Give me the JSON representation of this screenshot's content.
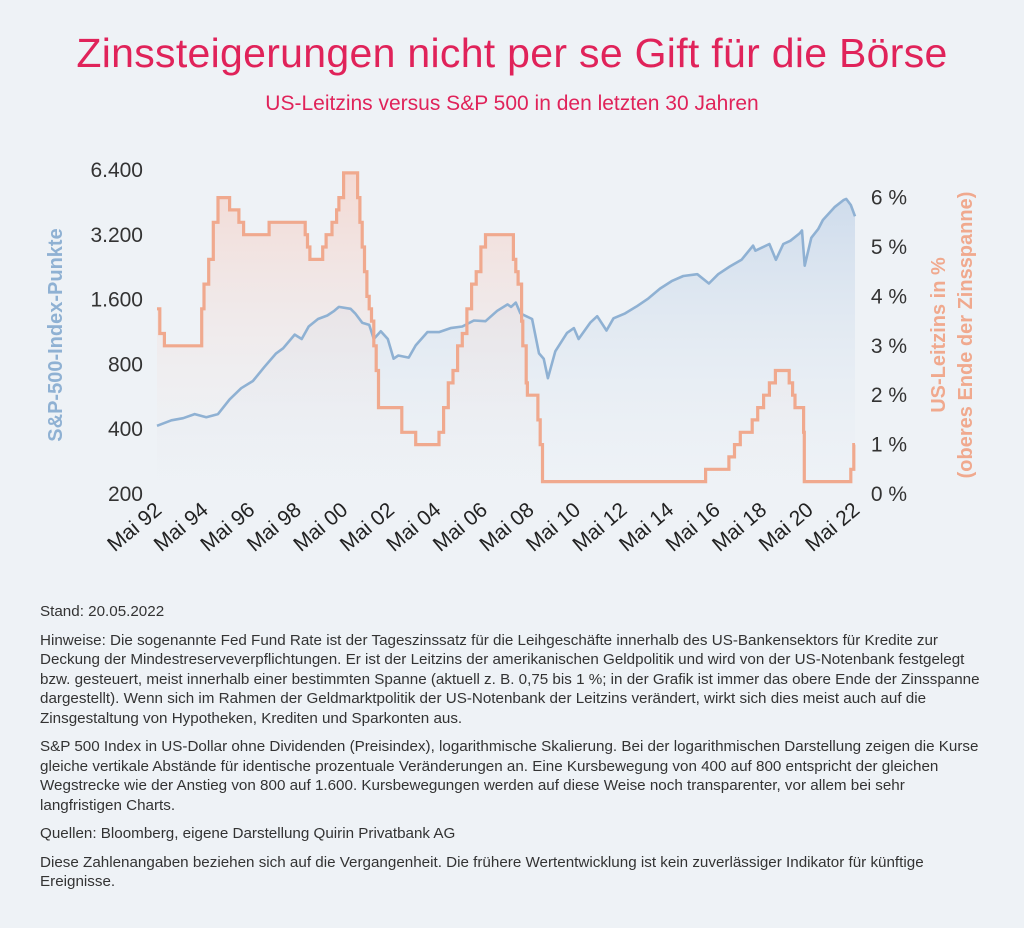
{
  "title": "Zinssteigerungen nicht per se Gift für die Börse",
  "subtitle": "US-Leitzins versus S&P 500 in den letzten 30 Jahren",
  "colors": {
    "title": "#e0235a",
    "sp500_line": "#8fb1d3",
    "rate_line": "#f0a98e",
    "background": "#eef2f6"
  },
  "notes": {
    "stand": "Stand: 20.05.2022",
    "hinweise": "Hinweise: Die sogenannte Fed Fund Rate ist der Tageszinssatz für die Leihgeschäfte innerhalb des US-Bankensektors für Kredite zur Deckung der Mindestreserveverpflichtungen. Er ist der Leitzins der amerikanischen Geldpolitik und wird von der US-Notenbank festgelegt bzw. gesteuert, meist innerhalb einer bestimmten Spanne (aktuell z. B. 0,75 bis 1 %; in der Grafik ist immer das obere Ende der Zinsspanne dargestellt). Wenn sich im Rahmen der Geldmarktpolitik der US-Notenbank der Leitzins verändert, wirkt sich dies meist auch auf die Zinsgestaltung von Hypotheken, Krediten und Sparkonten aus.",
    "index": "S&P 500 Index in US-Dollar ohne Dividenden (Preisindex), logarithmische Skalierung. Bei der logarithmischen Darstellung zeigen die Kurse gleiche vertikale Abstände für identische prozentuale Veränderungen an. Eine Kursbewegung von 400 auf 800 entspricht der gleichen Wegstrecke wie der Anstieg von 800 auf 1.600. Kursbewegungen werden auf diese Weise noch transparenter, vor allem bei sehr langfristigen Charts.",
    "quellen": "Quellen: Bloomberg, eigene Darstellung Quirin Privatbank AG",
    "disclaimer": "Diese Zahlenangaben beziehen sich auf die Vergangenheit. Die frühere Wertentwicklung ist kein zuverlässiger Indikator für künftige Ereignisse."
  },
  "chart_data": {
    "type": "line",
    "title": "Zinssteigerungen nicht per se Gift für die Börse",
    "subtitle": "US-Leitzins versus S&P 500 in den letzten 30 Jahren",
    "xlabel": "",
    "ylabel_left": "S&P-500-Index-Punkte",
    "ylabel_right": "US-Leitzins in % (oberes Ende der Zinsspanne)",
    "ylabel_right_lines": [
      "US-Leitzins in %",
      "(oberes Ende der Zinsspanne)"
    ],
    "x_tick_labels": [
      "Mai 92",
      "Mai 94",
      "Mai 96",
      "Mai 98",
      "Mai 00",
      "Mai 02",
      "Mai 04",
      "Mai 06",
      "Mai 08",
      "Mai 10",
      "Mai 12",
      "Mai 14",
      "Mai 16",
      "Mai 18",
      "Mai 20",
      "Mai 22"
    ],
    "x_tick_years": [
      1992.38,
      1994.38,
      1996.38,
      1998.38,
      2000.38,
      2002.38,
      2004.38,
      2006.38,
      2008.38,
      2010.38,
      2012.38,
      2014.38,
      2016.38,
      2018.38,
      2020.38,
      2022.38
    ],
    "xlim": [
      1992.38,
      2022.38
    ],
    "y_left_scale": "log",
    "y_left_ticks": [
      200,
      400,
      800,
      1600,
      3200,
      6400
    ],
    "y_left_tick_labels": [
      "200",
      "400",
      "800",
      "1.600",
      "3.200",
      "6.400"
    ],
    "y_left_lim": [
      200,
      6400
    ],
    "y_right_ticks": [
      0,
      1,
      2,
      3,
      4,
      5,
      6
    ],
    "y_right_tick_labels": [
      "0 %",
      "1 %",
      "2 %",
      "3 %",
      "4 %",
      "5 %",
      "6 %"
    ],
    "y_right_lim": [
      0,
      6.6
    ],
    "grid": false,
    "series": [
      {
        "name": "S&P-500-Index-Punkte",
        "axis": "left",
        "color": "#8fb1d3",
        "x": [
          1992.38,
          1993.0,
          1993.5,
          1994.0,
          1994.5,
          1995.0,
          1995.5,
          1996.0,
          1996.5,
          1997.0,
          1997.5,
          1997.8,
          1998.3,
          1998.6,
          1998.9,
          1999.3,
          1999.7,
          2000.0,
          2000.2,
          2000.7,
          2000.9,
          2001.2,
          2001.5,
          2001.7,
          2002.0,
          2002.3,
          2002.55,
          2002.75,
          2003.2,
          2003.5,
          2004.0,
          2004.5,
          2005.0,
          2005.5,
          2006.0,
          2006.5,
          2007.0,
          2007.45,
          2007.6,
          2007.8,
          2008.0,
          2008.5,
          2008.8,
          2009.0,
          2009.18,
          2009.5,
          2010.0,
          2010.3,
          2010.5,
          2011.0,
          2011.3,
          2011.7,
          2012.0,
          2012.5,
          2013.0,
          2013.5,
          2014.0,
          2014.5,
          2015.0,
          2015.6,
          2016.1,
          2016.5,
          2017.0,
          2017.5,
          2018.0,
          2018.1,
          2018.7,
          2018.98,
          2019.3,
          2019.6,
          2020.0,
          2020.1,
          2020.22,
          2020.5,
          2020.8,
          2021.0,
          2021.5,
          2021.9,
          2022.0,
          2022.2,
          2022.38
        ],
        "y": [
          415,
          440,
          450,
          470,
          455,
          470,
          550,
          620,
          670,
          780,
          900,
          950,
          1100,
          1050,
          1200,
          1300,
          1350,
          1420,
          1480,
          1450,
          1380,
          1250,
          1220,
          1050,
          1140,
          1050,
          850,
          880,
          860,
          980,
          1130,
          1130,
          1180,
          1200,
          1280,
          1270,
          1420,
          1520,
          1480,
          1550,
          1380,
          1300,
          900,
          850,
          690,
          920,
          1120,
          1180,
          1050,
          1250,
          1340,
          1150,
          1310,
          1380,
          1490,
          1620,
          1800,
          1950,
          2060,
          2100,
          1900,
          2100,
          2280,
          2450,
          2850,
          2700,
          2900,
          2450,
          2900,
          3000,
          3250,
          3350,
          2300,
          3100,
          3400,
          3750,
          4300,
          4650,
          4700,
          4400,
          3900
        ]
      },
      {
        "name": "US-Leitzins in % (oberes Ende der Zinsspanne)",
        "axis": "right",
        "color": "#f0a98e",
        "x": [
          1992.38,
          1992.5,
          1992.7,
          1994.1,
          1994.3,
          1994.4,
          1994.6,
          1994.8,
          1995.0,
          1995.5,
          1995.9,
          1996.1,
          1997.2,
          1998.75,
          1998.85,
          1998.95,
          1999.5,
          1999.65,
          1999.9,
          2000.1,
          2000.2,
          2000.4,
          2000.9,
          2001.0,
          2001.1,
          2001.2,
          2001.3,
          2001.4,
          2001.5,
          2001.6,
          2001.7,
          2001.8,
          2001.9,
          2002.9,
          2003.5,
          2004.5,
          2004.7,
          2004.9,
          2005.1,
          2005.3,
          2005.5,
          2005.7,
          2005.9,
          2006.1,
          2006.3,
          2006.5,
          2007.7,
          2007.8,
          2007.9,
          2008.05,
          2008.1,
          2008.25,
          2008.3,
          2008.75,
          2008.85,
          2008.95,
          2015.96,
          2016.96,
          2017.2,
          2017.45,
          2017.96,
          2018.2,
          2018.45,
          2018.7,
          2018.96,
          2019.55,
          2019.7,
          2019.8,
          2020.17,
          2020.2,
          2022.2,
          2022.33,
          2022.38
        ],
        "y": [
          3.75,
          3.25,
          3.0,
          3.0,
          3.75,
          4.25,
          4.75,
          5.5,
          6.0,
          5.75,
          5.5,
          5.25,
          5.5,
          5.25,
          5.0,
          4.75,
          5.0,
          5.25,
          5.5,
          5.75,
          6.0,
          6.5,
          6.5,
          6.0,
          5.5,
          5.0,
          4.5,
          4.0,
          3.75,
          3.5,
          3.0,
          2.5,
          1.75,
          1.25,
          1.0,
          1.25,
          1.75,
          2.25,
          2.5,
          3.0,
          3.25,
          3.75,
          4.25,
          4.5,
          5.0,
          5.25,
          4.75,
          4.5,
          4.25,
          3.5,
          3.0,
          2.25,
          2.0,
          1.5,
          1.0,
          0.25,
          0.5,
          0.75,
          1.0,
          1.25,
          1.5,
          1.75,
          2.0,
          2.25,
          2.5,
          2.25,
          2.0,
          1.75,
          1.25,
          0.25,
          0.5,
          1.0,
          1.0
        ]
      }
    ]
  }
}
